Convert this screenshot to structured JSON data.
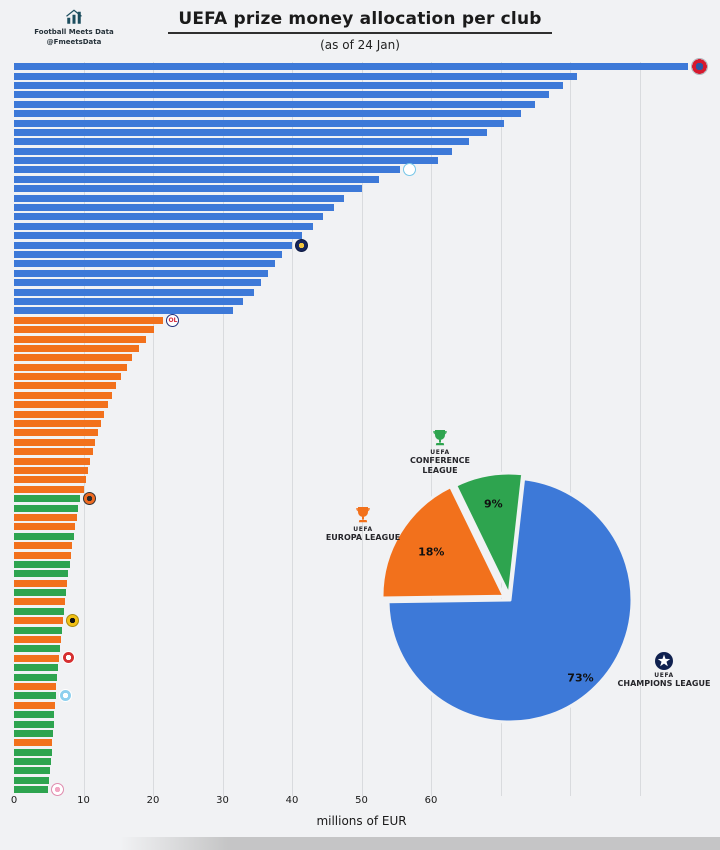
{
  "header": {
    "title": "UEFA prize money allocation per club",
    "subtitle": "(as of 24 Jan)",
    "brand": {
      "line1": "Football Meets Data",
      "line2": "@FmeetsData"
    }
  },
  "chart_data": [
    {
      "type": "bar",
      "orientation": "horizontal",
      "title": "UEFA prize money allocation per club",
      "subtitle": "(as of 24 Jan)",
      "xlabel": "millions of EUR",
      "x_ticks": [
        0,
        10,
        20,
        30,
        40,
        50,
        60
      ],
      "xlim": [
        0,
        100
      ],
      "grid": true,
      "colors": {
        "CL": "#3d79d8",
        "EL": "#f2711c",
        "ECL": "#2ea44f"
      },
      "legend": [
        {
          "code": "CL",
          "name": "CHAMPIONS LEAGUE",
          "color": "#3d79d8"
        },
        {
          "code": "EL",
          "name": "EUROPA LEAGUE",
          "color": "#f2711c"
        },
        {
          "code": "ECL",
          "name": "CONFERENCE LEAGUE",
          "color": "#2ea44f"
        }
      ],
      "bars": [
        [
          97,
          "CL"
        ],
        [
          81,
          "CL"
        ],
        [
          79,
          "CL"
        ],
        [
          77,
          "CL"
        ],
        [
          75,
          "CL"
        ],
        [
          73,
          "CL"
        ],
        [
          70.5,
          "CL"
        ],
        [
          68,
          "CL"
        ],
        [
          65.5,
          "CL"
        ],
        [
          63,
          "CL"
        ],
        [
          61,
          "CL"
        ],
        [
          55.5,
          "CL"
        ],
        [
          52.5,
          "CL"
        ],
        [
          50,
          "CL"
        ],
        [
          47.5,
          "CL"
        ],
        [
          46,
          "CL"
        ],
        [
          44.5,
          "CL"
        ],
        [
          43,
          "CL"
        ],
        [
          41.5,
          "CL"
        ],
        [
          40,
          "CL"
        ],
        [
          38.5,
          "CL"
        ],
        [
          37.5,
          "CL"
        ],
        [
          36.5,
          "CL"
        ],
        [
          35.5,
          "CL"
        ],
        [
          34.5,
          "CL"
        ],
        [
          33,
          "CL"
        ],
        [
          31.5,
          "CL"
        ],
        [
          21.5,
          "EL"
        ],
        [
          20.2,
          "EL"
        ],
        [
          19,
          "EL"
        ],
        [
          18,
          "EL"
        ],
        [
          17,
          "EL"
        ],
        [
          16.2,
          "EL"
        ],
        [
          15.4,
          "EL"
        ],
        [
          14.7,
          "EL"
        ],
        [
          14.1,
          "EL"
        ],
        [
          13.5,
          "EL"
        ],
        [
          13,
          "EL"
        ],
        [
          12.5,
          "EL"
        ],
        [
          12.1,
          "EL"
        ],
        [
          11.7,
          "EL"
        ],
        [
          11.3,
          "EL"
        ],
        [
          11,
          "EL"
        ],
        [
          10.7,
          "EL"
        ],
        [
          10.4,
          "EL"
        ],
        [
          10.1,
          "EL"
        ],
        [
          9.5,
          "ECL"
        ],
        [
          9.2,
          "ECL"
        ],
        [
          9,
          "EL"
        ],
        [
          8.8,
          "EL"
        ],
        [
          8.6,
          "ECL"
        ],
        [
          8.4,
          "EL"
        ],
        [
          8.2,
          "EL"
        ],
        [
          8,
          "ECL"
        ],
        [
          7.8,
          "ECL"
        ],
        [
          7.6,
          "EL"
        ],
        [
          7.5,
          "ECL"
        ],
        [
          7.3,
          "EL"
        ],
        [
          7.2,
          "ECL"
        ],
        [
          7,
          "EL"
        ],
        [
          6.9,
          "ECL"
        ],
        [
          6.7,
          "EL"
        ],
        [
          6.6,
          "ECL"
        ],
        [
          6.5,
          "EL"
        ],
        [
          6.3,
          "ECL"
        ],
        [
          6.2,
          "ECL"
        ],
        [
          6.1,
          "EL"
        ],
        [
          6,
          "ECL"
        ],
        [
          5.9,
          "EL"
        ],
        [
          5.8,
          "ECL"
        ],
        [
          5.7,
          "ECL"
        ],
        [
          5.6,
          "ECL"
        ],
        [
          5.5,
          "EL"
        ],
        [
          5.4,
          "ECL"
        ],
        [
          5.3,
          "ECL"
        ],
        [
          5.2,
          "ECL"
        ],
        [
          5.1,
          "ECL"
        ],
        [
          4.9,
          "ECL"
        ]
      ]
    },
    {
      "type": "pie",
      "slices": [
        {
          "org": "UEFA",
          "name": "CHAMPIONS LEAGUE",
          "pct": 73,
          "pct_label": "73%",
          "color": "#3d79d8",
          "icon_color": "#10214f"
        },
        {
          "org": "UEFA",
          "name": "EUROPA LEAGUE",
          "pct": 18,
          "pct_label": "18%",
          "color": "#f2711c",
          "icon_color": "#f2711c"
        },
        {
          "org": "UEFA",
          "name": "CONFERENCE LEAGUE",
          "pct": 9,
          "pct_label": "9%",
          "color": "#2ea44f",
          "icon_color": "#2ea44f"
        }
      ],
      "legend_position": "around"
    }
  ],
  "badges": [
    {
      "row": 0,
      "name": "bayern-munich-club-badge",
      "c1": "#2a57a5",
      "c2": "#d6192e",
      "c3": "#ffffff",
      "ring": "#b0b6bd"
    },
    {
      "row": 11,
      "name": "marseille-club-badge",
      "c1": "#ffffff",
      "c2": "#ffffff",
      "c3": "#bfe6f5",
      "ring": "#79c7e8"
    },
    {
      "row": 19,
      "name": "club-badge-navy-gold",
      "c1": "#f3c63e",
      "c2": "#16255c",
      "c3": "#16255c",
      "ring": "#0e1a42"
    },
    {
      "row": 27,
      "name": "lyon-ol-club-badge",
      "c1": "#ffffff",
      "c2": "#ffffff",
      "c3": "#ffffff",
      "ring": "#21317d",
      "text": "OL",
      "text_color": "#d6293a"
    },
    {
      "row": 46,
      "name": "club-badge-orange-black",
      "c1": "#2b2b2b",
      "c2": "#f06a21",
      "c3": "#f06a21",
      "ring": "#333333"
    },
    {
      "row": 59,
      "name": "club-badge-yellow-black",
      "c1": "#111111",
      "c2": "#f2c114",
      "c3": "#f2c114",
      "ring": "#a98a10"
    },
    {
      "row": 63,
      "name": "club-badge-red-white",
      "c1": "#ffffff",
      "c2": "#d63031",
      "c3": "#d63031",
      "ring": "#ffffff"
    },
    {
      "row": 67,
      "name": "club-badge-light-blue",
      "c1": "#ffffff",
      "c2": "#8fd0ee",
      "c3": "#8fd0ee",
      "ring": "#ffffff"
    },
    {
      "row": 77,
      "name": "club-badge-pink-white",
      "c1": "#f2a7c3",
      "c2": "#ffffff",
      "c3": "#f2b8cd",
      "ring": "#e08fb0"
    }
  ]
}
